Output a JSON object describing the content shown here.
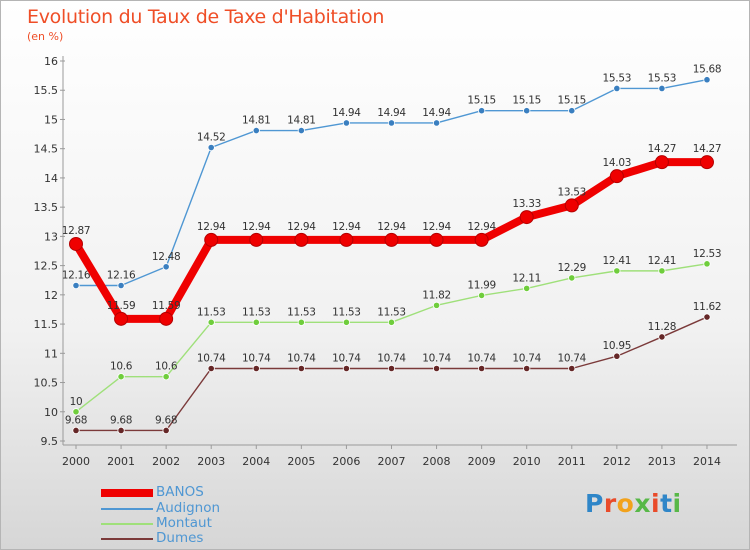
{
  "header": {
    "title": "Evolution du Taux de Taxe d'Habitation",
    "unit": "(en %)"
  },
  "logo": {
    "text": "Proxiti",
    "colors": [
      "#2f86c8",
      "#e94b2a",
      "#f2a21c",
      "#58b848",
      "#e94b2a",
      "#2f86c8",
      "#58b848"
    ]
  },
  "chart_data": {
    "type": "line",
    "x": [
      "2000",
      "2001",
      "2002",
      "2003",
      "2004",
      "2005",
      "2006",
      "2007",
      "2008",
      "2009",
      "2010",
      "2011",
      "2012",
      "2013",
      "2014"
    ],
    "ylim": [
      9.5,
      16
    ],
    "yticks": [
      "9.5",
      "10",
      "10.5",
      "11",
      "11.5",
      "12",
      "12.5",
      "13",
      "13.5",
      "14",
      "14.5",
      "15",
      "15.5",
      "16"
    ],
    "grid": false,
    "legend_position": "bottom-left",
    "series": [
      {
        "name": "BANOS",
        "color": "#ef0000",
        "bold": true,
        "values": [
          12.87,
          11.59,
          11.59,
          12.94,
          12.94,
          12.94,
          12.94,
          12.94,
          12.94,
          12.94,
          13.33,
          13.53,
          14.03,
          14.27,
          14.27
        ],
        "labels": [
          "12.87",
          "11.59",
          "11.59",
          "12.94",
          "12.94",
          "12.94",
          "12.94",
          "12.94",
          "12.94",
          "12.94",
          "13.33",
          "13.53",
          "14.03",
          "14.27",
          "14.27"
        ]
      },
      {
        "name": "Audignon",
        "color": "#4f97d3",
        "marker": "#3a7fc0",
        "values": [
          12.16,
          12.16,
          12.48,
          14.52,
          14.81,
          14.81,
          14.94,
          14.94,
          14.94,
          15.15,
          15.15,
          15.15,
          15.53,
          15.53,
          15.68
        ],
        "labels": [
          "12.16",
          "12.16",
          "12.48",
          "14.52",
          "14.81",
          "14.81",
          "14.94",
          "14.94",
          "14.94",
          "15.15",
          "15.15",
          "15.15",
          "15.53",
          "15.53",
          "15.68"
        ]
      },
      {
        "name": "Montaut",
        "color": "#9fe07a",
        "marker": "#6fcd3c",
        "values": [
          10,
          10.6,
          10.6,
          11.53,
          11.53,
          11.53,
          11.53,
          11.53,
          11.82,
          11.99,
          12.11,
          12.29,
          12.41,
          12.41,
          12.53
        ],
        "labels": [
          "10",
          "10.6",
          "10.6",
          "11.53",
          "11.53",
          "11.53",
          "11.53",
          "11.53",
          "11.82",
          "11.99",
          "12.11",
          "12.29",
          "12.41",
          "12.41",
          "12.53"
        ]
      },
      {
        "name": "Dumes",
        "color": "#7b3a3a",
        "marker": "#652727",
        "values": [
          9.68,
          9.68,
          9.68,
          10.74,
          10.74,
          10.74,
          10.74,
          10.74,
          10.74,
          10.74,
          10.74,
          10.74,
          10.95,
          11.28,
          11.62
        ],
        "labels": [
          "9.68",
          "9.68",
          "9.68",
          "10.74",
          "10.74",
          "10.74",
          "10.74",
          "10.74",
          "10.74",
          "10.74",
          "10.74",
          "10.74",
          "10.95",
          "11.28",
          "11.62"
        ]
      }
    ]
  }
}
